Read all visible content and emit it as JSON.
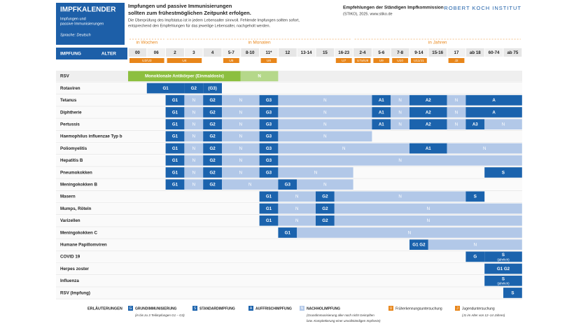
{
  "header": {
    "title": "IMPFKALENDER",
    "subtitle": [
      "Impfungen und",
      "passive Immunisierungen"
    ],
    "language": "Sprache: Deutsch",
    "intro_bold": [
      "Impfungen und passive Immunisierungen",
      "sollten zum frühestmöglichen Zeitpunkt erfolgen."
    ],
    "intro_text": [
      "Die Überprüfung des Impfstatus ist in jedem Lebensalter sinnvoll. Fehlende Impfungen sollten sofort,",
      "entsprechend den Empfehlungen für das jeweilige Lebensalter, nachgeholt werden."
    ],
    "stiko": [
      "Empfehlungen der Ständigen Impfkommission",
      "(STIKO), 2025. www.stiko.de"
    ],
    "institute": "ROBERT KOCH INSTITUT"
  },
  "table_header": {
    "vaccination": "IMPFUNG",
    "age": "ALTER"
  },
  "age_groups": [
    {
      "label": "in Wochen",
      "from": "00",
      "to": "06"
    },
    {
      "label": "in Monaten",
      "from": "2",
      "to": "16-23"
    },
    {
      "label": "in Jahren",
      "from": "2-4",
      "to": "ab 75"
    }
  ],
  "ages": [
    "00",
    "06",
    "2",
    "3",
    "4",
    "5-7",
    "8-10",
    "11*",
    "12",
    "13-14",
    "15",
    "16-23",
    "2-4",
    "5-6",
    "7-8",
    "9-14",
    "15-16",
    "17",
    "ab 18",
    "60-74",
    "ab 75"
  ],
  "exams": [
    {
      "label": "U2/U3",
      "from": "00",
      "to": "06"
    },
    {
      "label": "U4",
      "from": "2",
      "to": "3"
    },
    {
      "label": "U5",
      "from": "5-7",
      "to": "5-7"
    },
    {
      "label": "U6",
      "from": "11*",
      "to": "11*"
    },
    {
      "label": "U7",
      "from": "16-23",
      "to": "16-23"
    },
    {
      "label": "U7a/U8",
      "from": "2-4",
      "to": "2-4"
    },
    {
      "label": "U9",
      "from": "5-6",
      "to": "5-6"
    },
    {
      "label": "U10",
      "from": "7-8",
      "to": "7-8"
    },
    {
      "label": "U11/J1",
      "from": "9-14",
      "to": "9-14"
    },
    {
      "label": "J2",
      "from": "17",
      "to": "17"
    }
  ],
  "vaccines": [
    {
      "name": "RSV",
      "cells": [
        {
          "from": "00",
          "to": "5-7",
          "kind": "mab",
          "label": "Monoklonale Antikörper (Einmaldosis)"
        },
        {
          "from": "8-10",
          "to": "11*",
          "kind": "mab_n",
          "label": "N"
        }
      ]
    },
    {
      "name": "Rotaviren",
      "cells": [
        {
          "from": "06",
          "to": "2",
          "kind": "G",
          "label": "G1"
        },
        {
          "from": "3",
          "to": "3",
          "kind": "G",
          "label": "G2"
        },
        {
          "from": "4",
          "to": "4",
          "kind": "G",
          "label": "(G3)"
        }
      ]
    },
    {
      "name": "Tetanus",
      "cells": [
        {
          "from": "2",
          "to": "2",
          "kind": "G",
          "label": "G1"
        },
        {
          "from": "3",
          "to": "3",
          "kind": "N",
          "label": "N"
        },
        {
          "from": "4",
          "to": "4",
          "kind": "G",
          "label": "G2"
        },
        {
          "from": "5-7",
          "to": "8-10",
          "kind": "N",
          "label": "N"
        },
        {
          "from": "11*",
          "to": "11*",
          "kind": "G",
          "label": "G3"
        },
        {
          "from": "12",
          "to": "2-4",
          "kind": "N",
          "label": "N"
        },
        {
          "from": "5-6",
          "to": "5-6",
          "kind": "A",
          "label": "A1"
        },
        {
          "from": "7-8",
          "to": "7-8",
          "kind": "N",
          "label": "N"
        },
        {
          "from": "9-14",
          "to": "15-16",
          "kind": "A",
          "label": "A2"
        },
        {
          "from": "17",
          "to": "17",
          "kind": "N",
          "label": "N"
        },
        {
          "from": "ab 18",
          "to": "ab 75",
          "kind": "A",
          "label": "A"
        }
      ]
    },
    {
      "name": "Diphtherie",
      "cells": [
        {
          "from": "2",
          "to": "2",
          "kind": "G",
          "label": "G1"
        },
        {
          "from": "3",
          "to": "3",
          "kind": "N",
          "label": "N"
        },
        {
          "from": "4",
          "to": "4",
          "kind": "G",
          "label": "G2"
        },
        {
          "from": "5-7",
          "to": "8-10",
          "kind": "N",
          "label": "N"
        },
        {
          "from": "11*",
          "to": "11*",
          "kind": "G",
          "label": "G3"
        },
        {
          "from": "12",
          "to": "2-4",
          "kind": "N",
          "label": "N"
        },
        {
          "from": "5-6",
          "to": "5-6",
          "kind": "A",
          "label": "A1"
        },
        {
          "from": "7-8",
          "to": "7-8",
          "kind": "N",
          "label": "N"
        },
        {
          "from": "9-14",
          "to": "15-16",
          "kind": "A",
          "label": "A2"
        },
        {
          "from": "17",
          "to": "17",
          "kind": "N",
          "label": "N"
        },
        {
          "from": "ab 18",
          "to": "ab 75",
          "kind": "A",
          "label": "A"
        }
      ]
    },
    {
      "name": "Pertussis",
      "cells": [
        {
          "from": "2",
          "to": "2",
          "kind": "G",
          "label": "G1"
        },
        {
          "from": "3",
          "to": "3",
          "kind": "N",
          "label": "N"
        },
        {
          "from": "4",
          "to": "4",
          "kind": "G",
          "label": "G2"
        },
        {
          "from": "5-7",
          "to": "8-10",
          "kind": "N",
          "label": "N"
        },
        {
          "from": "11*",
          "to": "11*",
          "kind": "G",
          "label": "G3"
        },
        {
          "from": "12",
          "to": "2-4",
          "kind": "N",
          "label": "N"
        },
        {
          "from": "5-6",
          "to": "5-6",
          "kind": "A",
          "label": "A1"
        },
        {
          "from": "7-8",
          "to": "7-8",
          "kind": "N",
          "label": "N"
        },
        {
          "from": "9-14",
          "to": "15-16",
          "kind": "A",
          "label": "A2"
        },
        {
          "from": "17",
          "to": "17",
          "kind": "N",
          "label": "N"
        },
        {
          "from": "ab 18",
          "to": "ab 18",
          "kind": "A",
          "label": "A3"
        },
        {
          "from": "60-74",
          "to": "ab 75",
          "kind": "N",
          "label": "N"
        }
      ]
    },
    {
      "name": "Haemophilus influenzae Typ b",
      "cells": [
        {
          "from": "2",
          "to": "2",
          "kind": "G",
          "label": "G1"
        },
        {
          "from": "3",
          "to": "3",
          "kind": "N",
          "label": "N"
        },
        {
          "from": "4",
          "to": "4",
          "kind": "G",
          "label": "G2"
        },
        {
          "from": "5-7",
          "to": "8-10",
          "kind": "N",
          "label": "N"
        },
        {
          "from": "11*",
          "to": "11*",
          "kind": "G",
          "label": "G3"
        },
        {
          "from": "12",
          "to": "2-4",
          "kind": "N",
          "label": "N"
        }
      ]
    },
    {
      "name": "Poliomyelitis",
      "cells": [
        {
          "from": "2",
          "to": "2",
          "kind": "G",
          "label": "G1"
        },
        {
          "from": "3",
          "to": "3",
          "kind": "N",
          "label": "N"
        },
        {
          "from": "4",
          "to": "4",
          "kind": "G",
          "label": "G2"
        },
        {
          "from": "5-7",
          "to": "8-10",
          "kind": "N",
          "label": "N"
        },
        {
          "from": "11*",
          "to": "11*",
          "kind": "G",
          "label": "G3"
        },
        {
          "from": "12",
          "to": "7-8",
          "kind": "N",
          "label": "N"
        },
        {
          "from": "9-14",
          "to": "15-16",
          "kind": "A",
          "label": "A1"
        },
        {
          "from": "17",
          "to": "ab 75",
          "kind": "N",
          "label": "N"
        }
      ]
    },
    {
      "name": "Hepatitis B",
      "cells": [
        {
          "from": "2",
          "to": "2",
          "kind": "G",
          "label": "G1"
        },
        {
          "from": "3",
          "to": "3",
          "kind": "N",
          "label": "N"
        },
        {
          "from": "4",
          "to": "4",
          "kind": "G",
          "label": "G2"
        },
        {
          "from": "5-7",
          "to": "8-10",
          "kind": "N",
          "label": "N"
        },
        {
          "from": "11*",
          "to": "11*",
          "kind": "G",
          "label": "G3"
        },
        {
          "from": "12",
          "to": "ab 75",
          "kind": "N",
          "label": "N"
        }
      ]
    },
    {
      "name": "Pneumokokken",
      "cells": [
        {
          "from": "2",
          "to": "2",
          "kind": "G",
          "label": "G1"
        },
        {
          "from": "3",
          "to": "3",
          "kind": "N",
          "label": "N"
        },
        {
          "from": "4",
          "to": "4",
          "kind": "G",
          "label": "G2"
        },
        {
          "from": "5-7",
          "to": "8-10",
          "kind": "N",
          "label": "N"
        },
        {
          "from": "11*",
          "to": "11*",
          "kind": "G",
          "label": "G3"
        },
        {
          "from": "12",
          "to": "16-23",
          "kind": "N",
          "label": "N"
        },
        {
          "from": "60-74",
          "to": "ab 75",
          "kind": "S",
          "label": "S"
        }
      ]
    },
    {
      "name": "Meningokokken B",
      "cells": [
        {
          "from": "2",
          "to": "2",
          "kind": "G",
          "label": "G1"
        },
        {
          "from": "3",
          "to": "3",
          "kind": "N",
          "label": "N"
        },
        {
          "from": "4",
          "to": "4",
          "kind": "G",
          "label": "G2"
        },
        {
          "from": "5-7",
          "to": "11*",
          "kind": "N",
          "label": "N"
        },
        {
          "from": "12",
          "to": "12",
          "kind": "G",
          "label": "G3"
        },
        {
          "from": "13-14",
          "to": "16-23",
          "kind": "N",
          "label": "N"
        }
      ]
    },
    {
      "name": "Masern",
      "cells": [
        {
          "from": "11*",
          "to": "11*",
          "kind": "G",
          "label": "G1"
        },
        {
          "from": "12",
          "to": "13-14",
          "kind": "N",
          "label": "N"
        },
        {
          "from": "15",
          "to": "15",
          "kind": "G",
          "label": "G2"
        },
        {
          "from": "16-23",
          "to": "17",
          "kind": "N",
          "label": "N"
        },
        {
          "from": "ab 18",
          "to": "ab 18",
          "kind": "S",
          "label": "S"
        }
      ]
    },
    {
      "name": "Mumps, Röteln",
      "cells": [
        {
          "from": "11*",
          "to": "11*",
          "kind": "G",
          "label": "G1"
        },
        {
          "from": "12",
          "to": "13-14",
          "kind": "N",
          "label": "N"
        },
        {
          "from": "15",
          "to": "15",
          "kind": "G",
          "label": "G2"
        },
        {
          "from": "16-23",
          "to": "ab 75",
          "kind": "N",
          "label": "N"
        }
      ]
    },
    {
      "name": "Varizellen",
      "cells": [
        {
          "from": "11*",
          "to": "11*",
          "kind": "G",
          "label": "G1"
        },
        {
          "from": "12",
          "to": "13-14",
          "kind": "N",
          "label": "N"
        },
        {
          "from": "15",
          "to": "15",
          "kind": "G",
          "label": "G2"
        },
        {
          "from": "16-23",
          "to": "ab 75",
          "kind": "N",
          "label": "N"
        }
      ]
    },
    {
      "name": "Meningokokken C",
      "cells": [
        {
          "from": "12",
          "to": "12",
          "kind": "G",
          "label": "G1"
        },
        {
          "from": "13-14",
          "to": "ab 75",
          "kind": "N",
          "label": "N"
        }
      ]
    },
    {
      "name": "Humane Papillomviren",
      "cells": [
        {
          "from": "9-14",
          "to": "9-14",
          "kind": "G",
          "label": "G1 G2"
        },
        {
          "from": "15-16",
          "to": "ab 75",
          "kind": "N",
          "label": "N"
        }
      ]
    },
    {
      "name": "COVID 19",
      "cells": [
        {
          "from": "ab 18",
          "to": "ab 18",
          "kind": "G",
          "label": "G"
        },
        {
          "from": "60-74",
          "to": "ab 75",
          "kind": "S",
          "label": "S",
          "note": "(jährlich)"
        }
      ]
    },
    {
      "name": "Herpes zoster",
      "cells": [
        {
          "from": "60-74",
          "to": "ab 75",
          "kind": "S",
          "label": "G1 G2"
        }
      ]
    },
    {
      "name": "Influenza",
      "cells": [
        {
          "from": "60-74",
          "to": "ab 75",
          "kind": "S",
          "label": "S",
          "note": "(jährlich)"
        }
      ]
    },
    {
      "name": "RSV (Impfung)",
      "cells": [
        {
          "from": "ab 75",
          "to": "ab 75",
          "kind": "S",
          "label": "S"
        }
      ]
    }
  ],
  "legend": {
    "title": "ERLÄUTERUNGEN",
    "items": [
      {
        "key": "G",
        "kind": "G",
        "label": "GRUNDIMMUNISIERUNG",
        "note": [
          "(in bis zu 3 Teilimpfungen G1 – G3)"
        ]
      },
      {
        "key": "S",
        "kind": "S",
        "label": "STANDARDIMPFUNG"
      },
      {
        "key": "A",
        "kind": "A",
        "label": "AUFFRISCHIMPFUNG"
      },
      {
        "key": "N",
        "kind": "N",
        "label": "NACHHOLIMPFUNG",
        "note": [
          "(Grundimmunisierung aller noch nicht Geimpften",
          "bzw. Komplettierung einer unvollständigen Impfserie)"
        ]
      },
      {
        "key": "U",
        "kind": "U",
        "label": "Früherkennungsuntersuchung"
      },
      {
        "key": "J",
        "kind": "U",
        "label": "Jugenduntersuchung",
        "note": [
          "(J1 im Alter von 12–14 Jahren)"
        ]
      }
    ]
  }
}
